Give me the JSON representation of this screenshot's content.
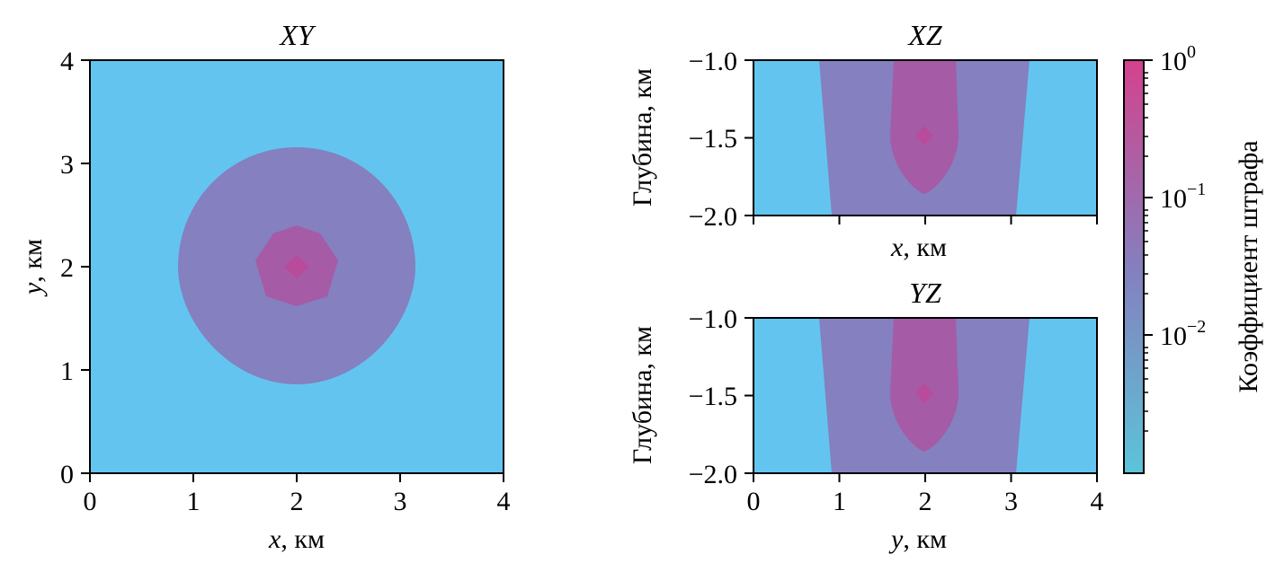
{
  "chart_data": [
    {
      "type": "heatmap",
      "title": "XY",
      "xlabel_var": "x",
      "xlabel_unit": ", км",
      "ylabel_var": "y",
      "ylabel_unit": ", км",
      "xlim": [
        0,
        4
      ],
      "ylim": [
        0,
        4
      ],
      "xticks": [
        "0",
        "1",
        "2",
        "3",
        "4"
      ],
      "yticks": [
        "0",
        "1",
        "2",
        "3",
        "4"
      ],
      "center": [
        2,
        2
      ],
      "levels": [
        {
          "value": 0.004,
          "region": "background"
        },
        {
          "value": 0.03,
          "region": "rounded square",
          "x_range": [
            0.85,
            3.15
          ],
          "y_range": [
            0.85,
            3.15
          ]
        },
        {
          "value": 0.3,
          "region": "core",
          "x_range": [
            1.6,
            2.4
          ],
          "y_range": [
            1.6,
            2.4
          ]
        },
        {
          "value": 0.6,
          "region": "peak",
          "x_range": [
            1.88,
            2.12
          ],
          "y_range": [
            1.88,
            2.12
          ]
        }
      ]
    },
    {
      "type": "heatmap",
      "title": "XZ",
      "xlabel_var": "x",
      "xlabel_unit": ", км",
      "ylabel": "Глубина, км",
      "xlim": [
        0,
        4
      ],
      "ylim": [
        -2.0,
        -1.0
      ],
      "yticks": [
        "−1.0",
        "−1.5",
        "−2.0"
      ],
      "center": [
        2,
        -1.5
      ],
      "levels": [
        {
          "value": 0.004,
          "region": "background"
        },
        {
          "value": 0.03,
          "region": "band",
          "x_range_top": [
            0.75,
            3.25
          ],
          "x_range_bottom": [
            0.95,
            3.05
          ]
        },
        {
          "value": 0.3,
          "region": "plume",
          "x_range": [
            1.6,
            2.4
          ],
          "bottom_depth": -1.88
        },
        {
          "value": 0.6,
          "region": "peak",
          "x": 2.0,
          "z": -1.5
        }
      ]
    },
    {
      "type": "heatmap",
      "title": "YZ",
      "xlabel_var": "y",
      "xlabel_unit": ", км",
      "ylabel": "Глубина, км",
      "xlim": [
        0,
        4
      ],
      "ylim": [
        -2.0,
        -1.0
      ],
      "xticks": [
        "0",
        "1",
        "2",
        "3",
        "4"
      ],
      "yticks": [
        "−1.0",
        "−1.5",
        "−2.0"
      ],
      "center": [
        2,
        -1.5
      ],
      "levels": [
        {
          "value": 0.004,
          "region": "background"
        },
        {
          "value": 0.03,
          "region": "band",
          "x_range_top": [
            0.75,
            3.25
          ],
          "x_range_bottom": [
            0.95,
            3.05
          ]
        },
        {
          "value": 0.3,
          "region": "plume",
          "x_range": [
            1.6,
            2.4
          ],
          "bottom_depth": -1.88
        },
        {
          "value": 0.6,
          "region": "peak",
          "x": 2.0,
          "z": -1.5
        }
      ]
    }
  ],
  "colorbar": {
    "label": "Коэффициент штрафа",
    "scale": "log",
    "range": [
      0.001,
      1
    ],
    "ticks": [
      {
        "base": "10",
        "exp": "0",
        "value": 1
      },
      {
        "base": "10",
        "exp": "−1",
        "value": 0.1
      },
      {
        "base": "10",
        "exp": "−2",
        "value": 0.01
      }
    ],
    "colors": {
      "low": "#5bc4d8",
      "mid": "#857fbd",
      "high": "#d4428d"
    }
  },
  "colors": {
    "background": "#63c5ef",
    "outer": "#8580bf",
    "middle": "#a55ba6",
    "inner": "#b94b9b"
  }
}
